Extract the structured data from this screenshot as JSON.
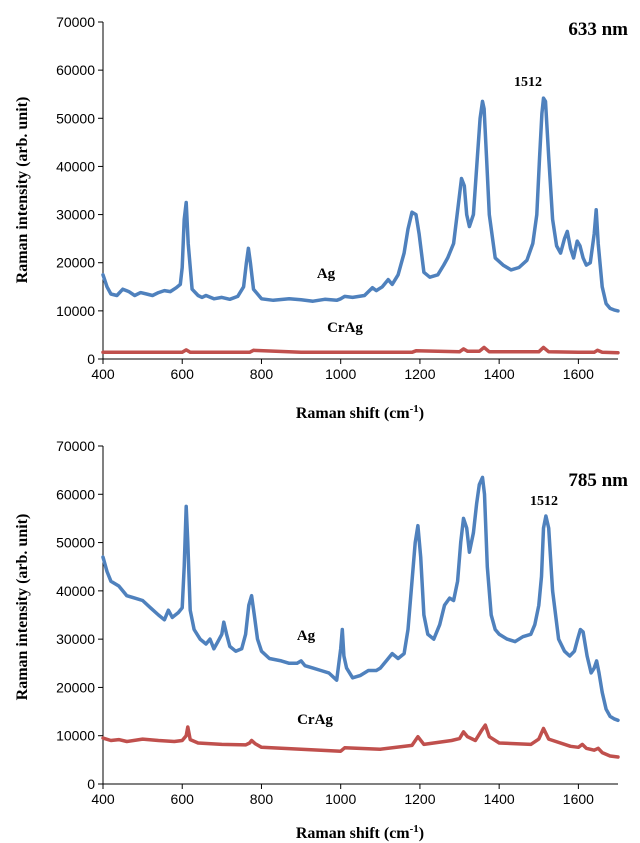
{
  "chart_data": [
    {
      "type": "line",
      "title": "633 nm",
      "xlabel": "Raman shift (cm",
      "xlabel_sup": "-1",
      "xlabel_tail": ")",
      "ylabel": "Raman intensity (arb. unit)",
      "xlim": [
        400,
        1700
      ],
      "ylim": [
        0,
        70000
      ],
      "xticks": [
        400,
        600,
        800,
        1000,
        1200,
        1400,
        1600
      ],
      "yticks": [
        0,
        10000,
        20000,
        30000,
        40000,
        50000,
        60000,
        70000
      ],
      "grid": false,
      "peak_label": "1512",
      "series": [
        {
          "name": "Ag",
          "color": "#4f81bd",
          "x": [
            400,
            410,
            420,
            435,
            450,
            465,
            480,
            495,
            510,
            525,
            540,
            555,
            570,
            585,
            595,
            600,
            605,
            610,
            615,
            625,
            640,
            650,
            660,
            680,
            700,
            720,
            740,
            755,
            762,
            767,
            772,
            780,
            800,
            830,
            870,
            900,
            930,
            960,
            990,
            1000,
            1010,
            1030,
            1060,
            1080,
            1090,
            1105,
            1120,
            1130,
            1145,
            1160,
            1170,
            1180,
            1190,
            1198,
            1210,
            1225,
            1245,
            1260,
            1270,
            1285,
            1297,
            1305,
            1312,
            1318,
            1325,
            1335,
            1345,
            1352,
            1358,
            1362,
            1368,
            1375,
            1390,
            1410,
            1430,
            1450,
            1470,
            1485,
            1495,
            1502,
            1508,
            1512,
            1517,
            1525,
            1535,
            1545,
            1555,
            1565,
            1572,
            1580,
            1588,
            1597,
            1604,
            1612,
            1620,
            1630,
            1640,
            1645,
            1650,
            1660,
            1670,
            1680,
            1690,
            1700
          ],
          "y": [
            17500,
            15000,
            13500,
            13200,
            14500,
            14000,
            13200,
            13800,
            13500,
            13200,
            13800,
            14200,
            14000,
            14800,
            15500,
            19000,
            29000,
            32500,
            24000,
            14500,
            13200,
            12800,
            13200,
            12500,
            12800,
            12400,
            13000,
            15000,
            20000,
            23000,
            20000,
            14500,
            12500,
            12200,
            12500,
            12300,
            12000,
            12400,
            12200,
            12500,
            13000,
            12800,
            13200,
            14800,
            14200,
            15000,
            16500,
            15500,
            17500,
            22000,
            27000,
            30500,
            30000,
            26000,
            18000,
            17000,
            17500,
            19500,
            21000,
            24000,
            32000,
            37500,
            36000,
            30000,
            27500,
            30000,
            42000,
            50000,
            53500,
            52000,
            42000,
            30000,
            21000,
            19500,
            18500,
            19000,
            20500,
            24000,
            30000,
            42000,
            51000,
            54200,
            53500,
            42000,
            29000,
            23500,
            22000,
            25000,
            26500,
            23000,
            21000,
            24500,
            23500,
            21000,
            19500,
            20000,
            26000,
            31000,
            24000,
            15000,
            11500,
            10500,
            10200,
            10000
          ]
        },
        {
          "name": "CrAg",
          "color": "#c0504d",
          "x": [
            400,
            600,
            610,
            620,
            700,
            770,
            780,
            900,
            1000,
            1180,
            1190,
            1300,
            1310,
            1320,
            1350,
            1362,
            1375,
            1500,
            1512,
            1525,
            1600,
            1640,
            1648,
            1660,
            1700
          ],
          "y": [
            1400,
            1400,
            1900,
            1400,
            1400,
            1400,
            1800,
            1400,
            1400,
            1400,
            1700,
            1500,
            2100,
            1600,
            1600,
            2400,
            1500,
            1500,
            2400,
            1500,
            1400,
            1400,
            1800,
            1400,
            1300
          ]
        }
      ],
      "annotations": [
        "Ag",
        "CrAg"
      ]
    },
    {
      "type": "line",
      "title": "785 nm",
      "xlabel": "Raman shift (cm",
      "xlabel_sup": "-1",
      "xlabel_tail": ")",
      "ylabel": "Raman intensity (arb. unit)",
      "xlim": [
        400,
        1700
      ],
      "ylim": [
        0,
        70000
      ],
      "xticks": [
        400,
        600,
        800,
        1000,
        1200,
        1400,
        1600
      ],
      "yticks": [
        0,
        10000,
        20000,
        30000,
        40000,
        50000,
        60000,
        70000
      ],
      "grid": false,
      "peak_label": "1512",
      "series": [
        {
          "name": "Ag",
          "color": "#4f81bd",
          "x": [
            400,
            410,
            420,
            440,
            460,
            480,
            500,
            520,
            540,
            555,
            565,
            575,
            590,
            600,
            605,
            610,
            614,
            620,
            630,
            645,
            660,
            670,
            680,
            690,
            700,
            705,
            712,
            720,
            735,
            750,
            760,
            768,
            775,
            782,
            790,
            800,
            820,
            850,
            870,
            890,
            900,
            910,
            930,
            950,
            970,
            990,
            1000,
            1004,
            1008,
            1015,
            1030,
            1050,
            1070,
            1090,
            1100,
            1115,
            1130,
            1145,
            1160,
            1170,
            1180,
            1188,
            1195,
            1202,
            1210,
            1220,
            1235,
            1250,
            1262,
            1275,
            1285,
            1295,
            1303,
            1310,
            1318,
            1325,
            1335,
            1343,
            1350,
            1358,
            1363,
            1370,
            1380,
            1390,
            1400,
            1420,
            1440,
            1460,
            1480,
            1490,
            1500,
            1507,
            1512,
            1518,
            1525,
            1535,
            1550,
            1565,
            1578,
            1590,
            1598,
            1605,
            1612,
            1622,
            1632,
            1640,
            1646,
            1652,
            1660,
            1670,
            1680,
            1690,
            1700
          ],
          "y": [
            47000,
            44000,
            42000,
            41000,
            39000,
            38500,
            38000,
            36500,
            35000,
            34000,
            36000,
            34500,
            35500,
            36500,
            45000,
            57500,
            50000,
            36000,
            32000,
            30000,
            29000,
            30000,
            28000,
            29500,
            31000,
            33500,
            31000,
            28500,
            27500,
            28000,
            31000,
            37000,
            39000,
            35000,
            30000,
            27500,
            26000,
            25500,
            25000,
            25000,
            25500,
            24500,
            24000,
            23500,
            23000,
            21500,
            28000,
            32000,
            26500,
            24000,
            22000,
            22500,
            23500,
            23500,
            24000,
            25500,
            27000,
            26000,
            27000,
            32000,
            42000,
            50000,
            53500,
            47000,
            35000,
            31000,
            30000,
            33000,
            37000,
            38500,
            38000,
            42000,
            50000,
            55000,
            53000,
            48000,
            52000,
            58000,
            62000,
            63500,
            60000,
            45000,
            35000,
            32000,
            31000,
            30000,
            29500,
            30500,
            31000,
            33000,
            37000,
            43000,
            53000,
            55500,
            53000,
            40000,
            30000,
            27500,
            26500,
            27500,
            30000,
            32000,
            31500,
            26500,
            23000,
            24000,
            25500,
            23000,
            19000,
            15500,
            14000,
            13500,
            13200
          ]
        },
        {
          "name": "CrAg",
          "color": "#c0504d",
          "x": [
            400,
            420,
            440,
            460,
            500,
            540,
            580,
            600,
            610,
            614,
            620,
            640,
            700,
            760,
            770,
            775,
            785,
            800,
            900,
            1000,
            1010,
            1100,
            1180,
            1195,
            1210,
            1280,
            1300,
            1310,
            1320,
            1340,
            1355,
            1365,
            1375,
            1400,
            1480,
            1500,
            1512,
            1525,
            1580,
            1600,
            1610,
            1620,
            1640,
            1650,
            1660,
            1680,
            1700
          ],
          "y": [
            9500,
            9000,
            9200,
            8800,
            9300,
            9000,
            8800,
            9000,
            10000,
            11800,
            9200,
            8500,
            8200,
            8100,
            8500,
            9000,
            8300,
            7600,
            7200,
            6800,
            7500,
            7200,
            8000,
            9800,
            8200,
            9000,
            9400,
            10800,
            9800,
            9000,
            11000,
            12200,
            9800,
            8500,
            8200,
            9300,
            11500,
            9300,
            7800,
            7600,
            8200,
            7400,
            7000,
            7400,
            6500,
            5800,
            5600
          ]
        }
      ],
      "annotations": [
        "Ag",
        "CrAg"
      ]
    }
  ]
}
